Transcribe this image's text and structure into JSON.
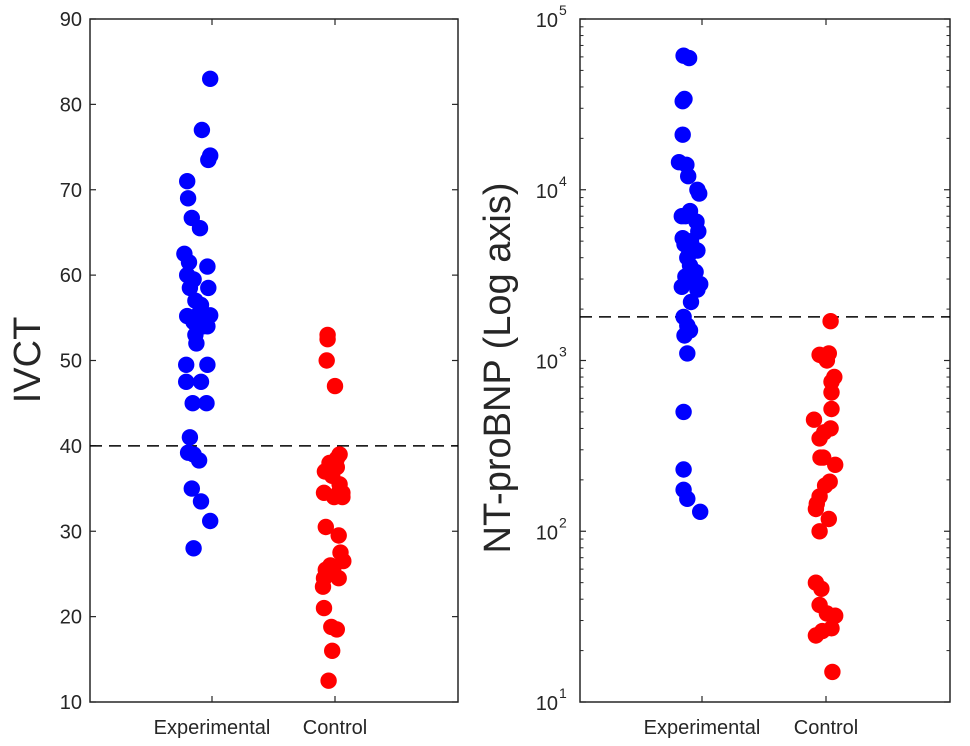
{
  "chart_data": [
    {
      "type": "scatter",
      "title": "",
      "xlabel": "",
      "ylabel": "IVCT",
      "yscale": "linear",
      "ylim": [
        10,
        90
      ],
      "yticks": [
        10,
        20,
        30,
        40,
        50,
        60,
        70,
        80,
        90
      ],
      "ytick_labels": [
        "10",
        "20",
        "30",
        "40",
        "50",
        "60",
        "70",
        "80",
        "90"
      ],
      "categories": [
        "Experimental",
        "Control"
      ],
      "threshold": 40,
      "series": [
        {
          "name": "Experimental",
          "color": "#0000ff",
          "points": [
            {
              "jitter": -0.02,
              "y": 83
            },
            {
              "jitter": -0.11,
              "y": 77
            },
            {
              "jitter": -0.02,
              "y": 74
            },
            {
              "jitter": -0.04,
              "y": 73.5
            },
            {
              "jitter": -0.27,
              "y": 71
            },
            {
              "jitter": -0.26,
              "y": 69
            },
            {
              "jitter": -0.22,
              "y": 66.7
            },
            {
              "jitter": -0.13,
              "y": 65.5
            },
            {
              "jitter": -0.3,
              "y": 62.5
            },
            {
              "jitter": -0.25,
              "y": 61.5
            },
            {
              "jitter": -0.05,
              "y": 61
            },
            {
              "jitter": -0.27,
              "y": 60
            },
            {
              "jitter": -0.2,
              "y": 59.5
            },
            {
              "jitter": -0.24,
              "y": 58.5
            },
            {
              "jitter": -0.04,
              "y": 58.5
            },
            {
              "jitter": -0.18,
              "y": 57
            },
            {
              "jitter": -0.12,
              "y": 56.5
            },
            {
              "jitter": -0.14,
              "y": 55.5
            },
            {
              "jitter": -0.27,
              "y": 55.2
            },
            {
              "jitter": -0.02,
              "y": 55.3
            },
            {
              "jitter": -0.2,
              "y": 54.5
            },
            {
              "jitter": -0.1,
              "y": 54
            },
            {
              "jitter": -0.05,
              "y": 54
            },
            {
              "jitter": -0.18,
              "y": 53
            },
            {
              "jitter": -0.17,
              "y": 52
            },
            {
              "jitter": -0.28,
              "y": 49.5
            },
            {
              "jitter": -0.05,
              "y": 49.5
            },
            {
              "jitter": -0.28,
              "y": 47.5
            },
            {
              "jitter": -0.12,
              "y": 47.5
            },
            {
              "jitter": -0.21,
              "y": 45
            },
            {
              "jitter": -0.06,
              "y": 45
            },
            {
              "jitter": -0.24,
              "y": 41
            },
            {
              "jitter": -0.26,
              "y": 39.2
            },
            {
              "jitter": -0.2,
              "y": 39
            },
            {
              "jitter": -0.14,
              "y": 38.3
            },
            {
              "jitter": -0.22,
              "y": 35
            },
            {
              "jitter": -0.12,
              "y": 33.5
            },
            {
              "jitter": -0.02,
              "y": 31.2
            },
            {
              "jitter": -0.2,
              "y": 28
            }
          ]
        },
        {
          "name": "Control",
          "color": "#ff0000",
          "points": [
            {
              "jitter": -0.08,
              "y": 53
            },
            {
              "jitter": -0.08,
              "y": 52.5
            },
            {
              "jitter": -0.09,
              "y": 50
            },
            {
              "jitter": 0.0,
              "y": 47
            },
            {
              "jitter": 0.05,
              "y": 39
            },
            {
              "jitter": 0.02,
              "y": 38.5
            },
            {
              "jitter": -0.06,
              "y": 38
            },
            {
              "jitter": 0.02,
              "y": 37.5
            },
            {
              "jitter": -0.11,
              "y": 37
            },
            {
              "jitter": -0.03,
              "y": 36.5
            },
            {
              "jitter": 0.05,
              "y": 35.5
            },
            {
              "jitter": -0.12,
              "y": 34.5
            },
            {
              "jitter": 0.04,
              "y": 34.5
            },
            {
              "jitter": 0.08,
              "y": 34.5
            },
            {
              "jitter": -0.01,
              "y": 34
            },
            {
              "jitter": 0.08,
              "y": 34
            },
            {
              "jitter": -0.1,
              "y": 30.5
            },
            {
              "jitter": 0.04,
              "y": 29.5
            },
            {
              "jitter": 0.06,
              "y": 27.5
            },
            {
              "jitter": 0.09,
              "y": 26.5
            },
            {
              "jitter": -0.05,
              "y": 26
            },
            {
              "jitter": -0.1,
              "y": 25.5
            },
            {
              "jitter": -0.02,
              "y": 25.5
            },
            {
              "jitter": -0.12,
              "y": 24.5
            },
            {
              "jitter": 0.04,
              "y": 24.5
            },
            {
              "jitter": -0.13,
              "y": 23.5
            },
            {
              "jitter": -0.12,
              "y": 21
            },
            {
              "jitter": -0.04,
              "y": 18.8
            },
            {
              "jitter": 0.02,
              "y": 18.5
            },
            {
              "jitter": -0.03,
              "y": 16
            },
            {
              "jitter": -0.07,
              "y": 12.5
            }
          ]
        }
      ]
    },
    {
      "type": "scatter",
      "title": "",
      "xlabel": "",
      "ylabel": "NT-proBNP (Log axis)",
      "yscale": "log",
      "ylim": [
        10,
        100000
      ],
      "yticks": [
        10,
        100,
        1000,
        10000,
        100000
      ],
      "ytick_labels": [
        {
          "base": "10",
          "exp": "1"
        },
        {
          "base": "10",
          "exp": "2"
        },
        {
          "base": "10",
          "exp": "3"
        },
        {
          "base": "10",
          "exp": "4"
        },
        {
          "base": "10",
          "exp": "5"
        }
      ],
      "categories": [
        "Experimental",
        "Control"
      ],
      "threshold": 1800,
      "series": [
        {
          "name": "Experimental",
          "color": "#0000ff",
          "points": [
            {
              "jitter": -0.2,
              "y": 61000
            },
            {
              "jitter": -0.14,
              "y": 59000
            },
            {
              "jitter": -0.19,
              "y": 34000
            },
            {
              "jitter": -0.21,
              "y": 33000
            },
            {
              "jitter": -0.21,
              "y": 21000
            },
            {
              "jitter": -0.25,
              "y": 14500
            },
            {
              "jitter": -0.17,
              "y": 14000
            },
            {
              "jitter": -0.15,
              "y": 12000
            },
            {
              "jitter": -0.05,
              "y": 10000
            },
            {
              "jitter": -0.03,
              "y": 9500
            },
            {
              "jitter": -0.13,
              "y": 7500
            },
            {
              "jitter": -0.22,
              "y": 7000
            },
            {
              "jitter": -0.18,
              "y": 7000
            },
            {
              "jitter": -0.06,
              "y": 6500
            },
            {
              "jitter": -0.04,
              "y": 5700
            },
            {
              "jitter": -0.21,
              "y": 5200
            },
            {
              "jitter": -0.12,
              "y": 5000
            },
            {
              "jitter": -0.19,
              "y": 4800
            },
            {
              "jitter": -0.1,
              "y": 4600
            },
            {
              "jitter": -0.05,
              "y": 4400
            },
            {
              "jitter": -0.14,
              "y": 4200
            },
            {
              "jitter": -0.16,
              "y": 4000
            },
            {
              "jitter": -0.13,
              "y": 3600
            },
            {
              "jitter": -0.07,
              "y": 3300
            },
            {
              "jitter": -0.18,
              "y": 3100
            },
            {
              "jitter": -0.15,
              "y": 3000
            },
            {
              "jitter": -0.02,
              "y": 2800
            },
            {
              "jitter": -0.22,
              "y": 2700
            },
            {
              "jitter": -0.05,
              "y": 2600
            },
            {
              "jitter": -0.12,
              "y": 2200
            },
            {
              "jitter": -0.2,
              "y": 1800
            },
            {
              "jitter": -0.16,
              "y": 1600
            },
            {
              "jitter": -0.13,
              "y": 1500
            },
            {
              "jitter": -0.19,
              "y": 1400
            },
            {
              "jitter": -0.16,
              "y": 1100
            },
            {
              "jitter": -0.2,
              "y": 500
            },
            {
              "jitter": -0.2,
              "y": 230
            },
            {
              "jitter": -0.2,
              "y": 175
            },
            {
              "jitter": -0.16,
              "y": 155
            },
            {
              "jitter": -0.02,
              "y": 130
            }
          ]
        },
        {
          "name": "Control",
          "color": "#ff0000",
          "points": [
            {
              "jitter": 0.05,
              "y": 1700
            },
            {
              "jitter": 0.03,
              "y": 1100
            },
            {
              "jitter": -0.07,
              "y": 1080
            },
            {
              "jitter": -0.02,
              "y": 1050
            },
            {
              "jitter": 0.01,
              "y": 1000
            },
            {
              "jitter": 0.09,
              "y": 800
            },
            {
              "jitter": 0.06,
              "y": 750
            },
            {
              "jitter": 0.06,
              "y": 650
            },
            {
              "jitter": 0.06,
              "y": 520
            },
            {
              "jitter": -0.13,
              "y": 450
            },
            {
              "jitter": 0.05,
              "y": 400
            },
            {
              "jitter": -0.02,
              "y": 380
            },
            {
              "jitter": -0.07,
              "y": 350
            },
            {
              "jitter": -0.06,
              "y": 270
            },
            {
              "jitter": -0.03,
              "y": 270
            },
            {
              "jitter": 0.1,
              "y": 245
            },
            {
              "jitter": 0.04,
              "y": 195
            },
            {
              "jitter": -0.01,
              "y": 185
            },
            {
              "jitter": -0.07,
              "y": 160
            },
            {
              "jitter": -0.1,
              "y": 145
            },
            {
              "jitter": -0.11,
              "y": 135
            },
            {
              "jitter": 0.03,
              "y": 118
            },
            {
              "jitter": -0.07,
              "y": 100
            },
            {
              "jitter": -0.11,
              "y": 50
            },
            {
              "jitter": -0.05,
              "y": 46
            },
            {
              "jitter": -0.07,
              "y": 37
            },
            {
              "jitter": 0.01,
              "y": 33
            },
            {
              "jitter": 0.1,
              "y": 32
            },
            {
              "jitter": 0.06,
              "y": 27
            },
            {
              "jitter": -0.04,
              "y": 26
            },
            {
              "jitter": -0.11,
              "y": 24.5
            },
            {
              "jitter": 0.07,
              "y": 15
            }
          ]
        }
      ]
    }
  ]
}
